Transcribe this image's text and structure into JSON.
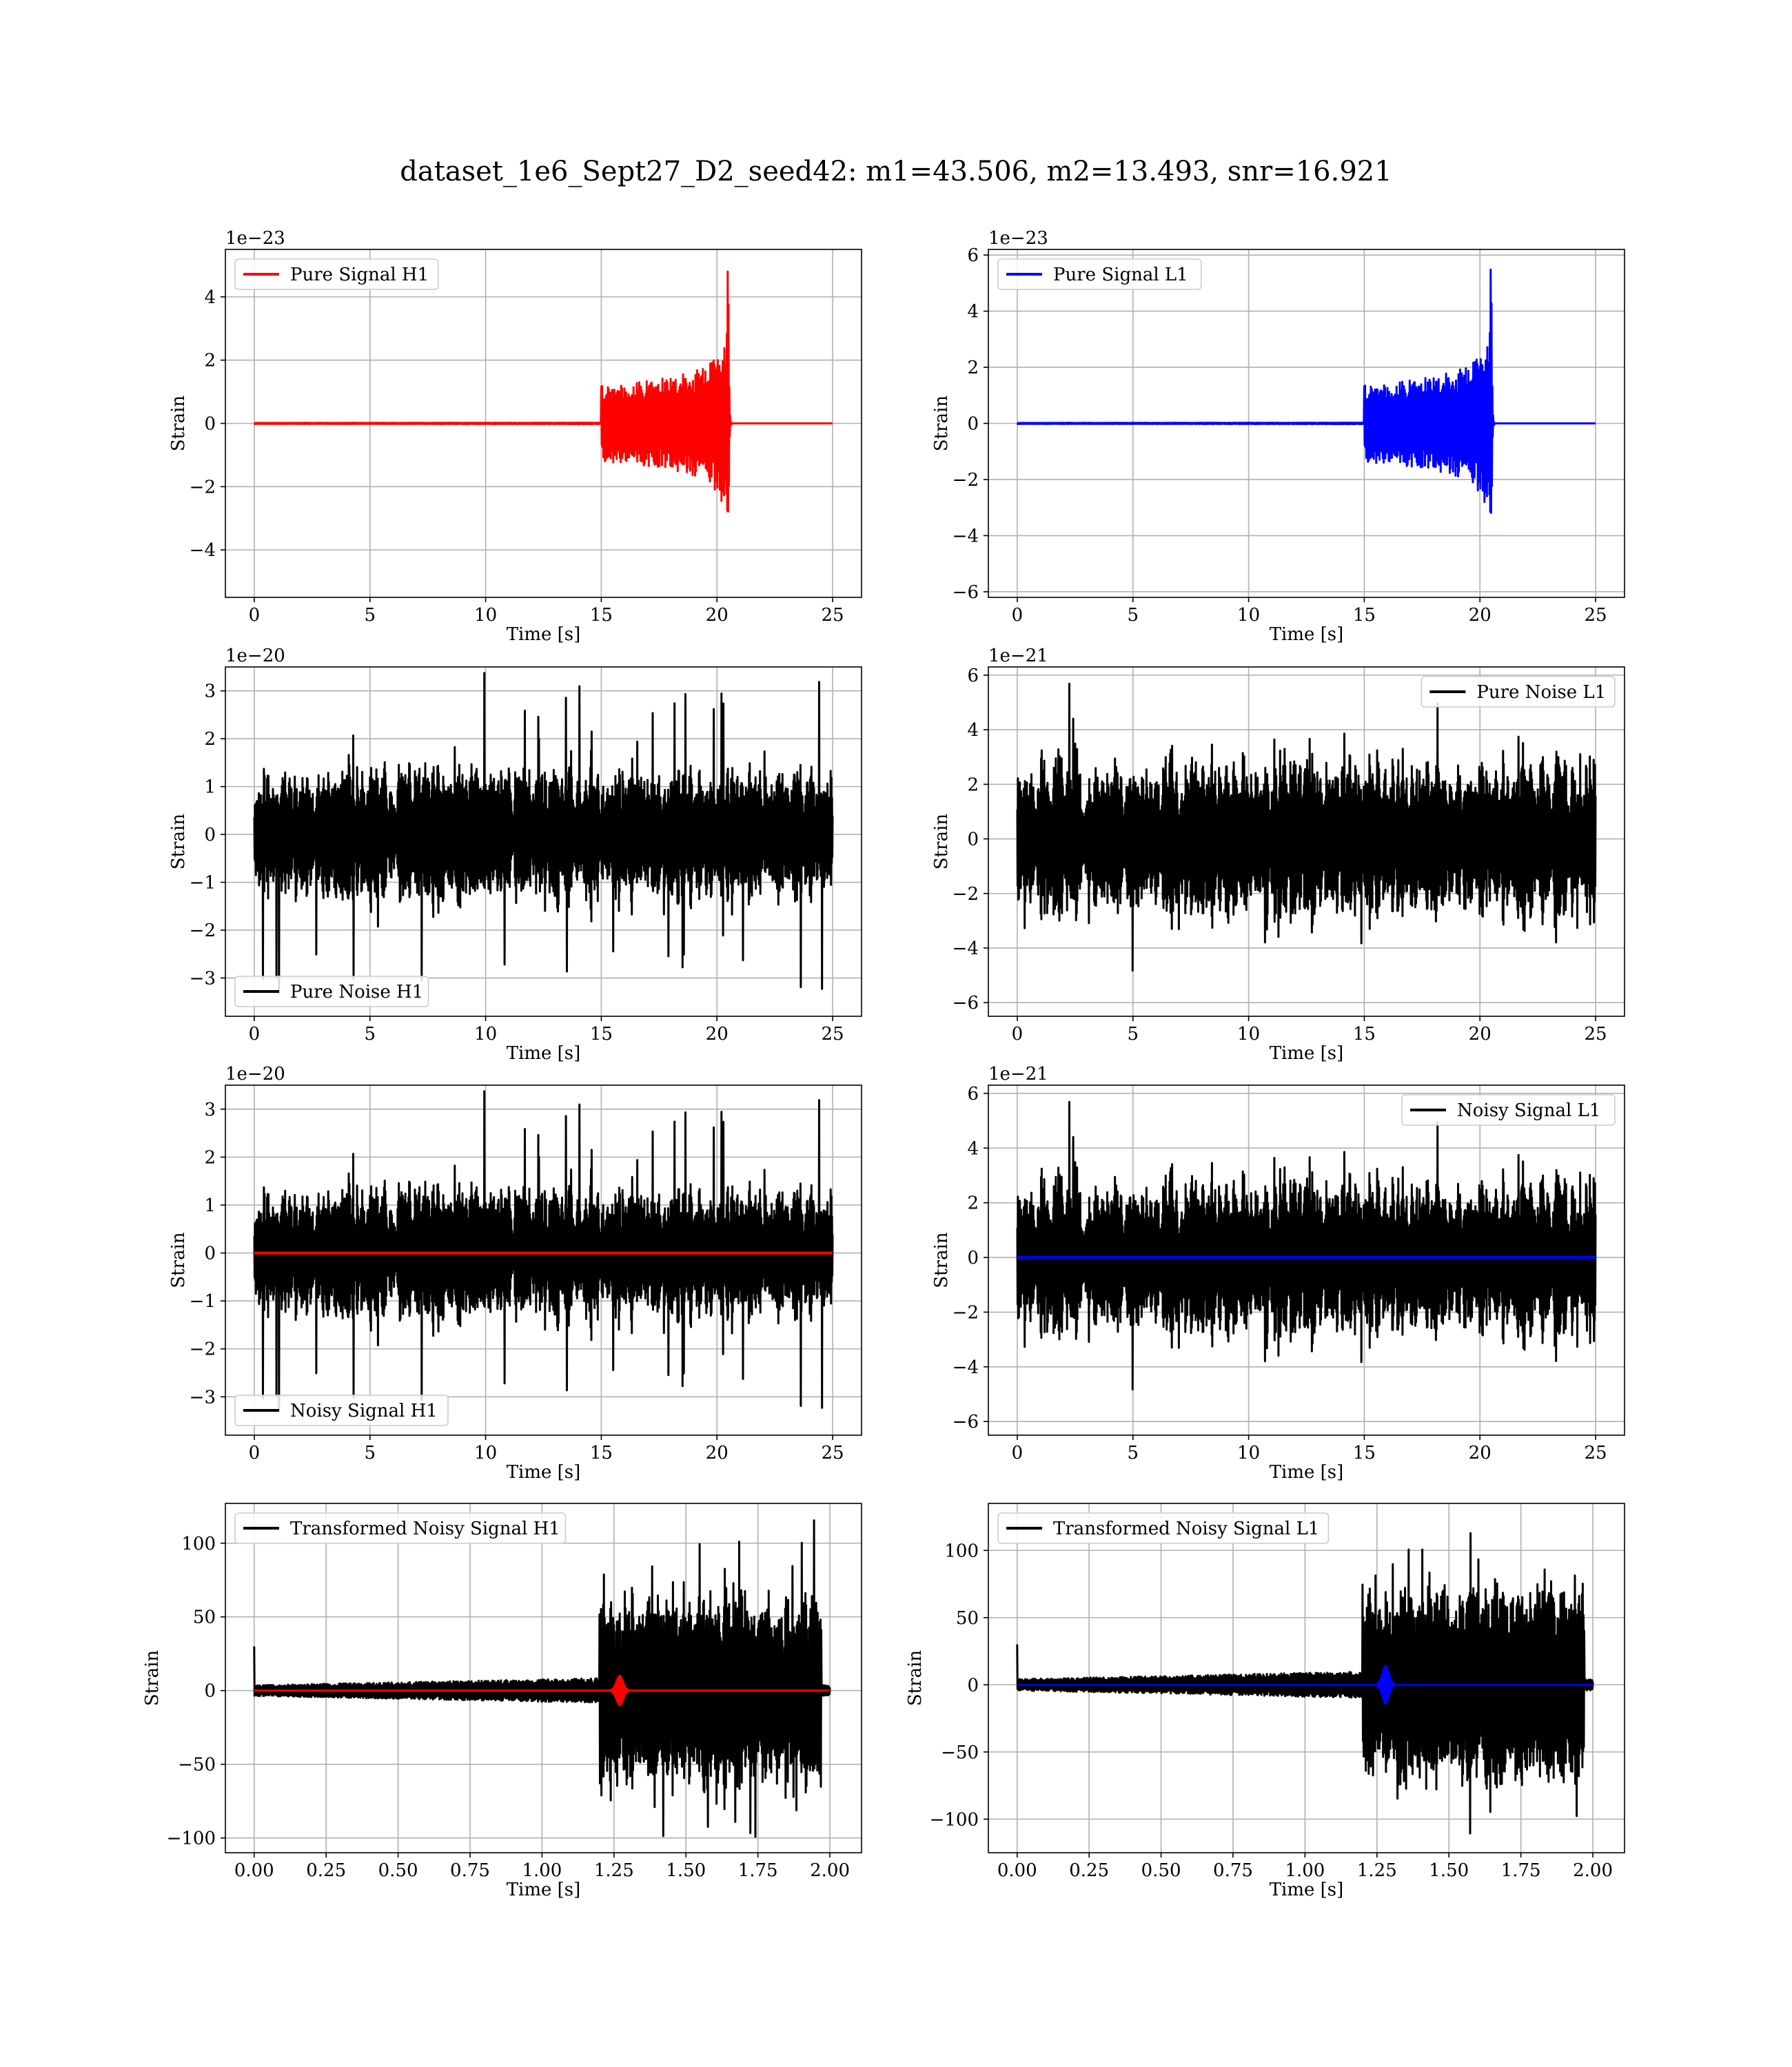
{
  "figure": {
    "suptitle": "dataset_1e6_Sept27_D2_seed42: m1=43.506, m2=13.493, snr=16.921"
  },
  "colors": {
    "h1_signal": "#ff0000",
    "l1_signal": "#0000ff",
    "noise": "#000000",
    "grid": "#b0b0b0"
  },
  "chart_data": [
    {
      "type": "line",
      "id": "pure-signal-h1",
      "xlabel": "Time [s]",
      "ylabel": "Strain",
      "offset_text": "1e−23",
      "xlim": [
        -1.25,
        26.25
      ],
      "ylim": [
        -5.5,
        5.5
      ],
      "xticks": [
        0,
        5,
        10,
        15,
        20,
        25
      ],
      "xtick_labels": [
        "0",
        "5",
        "10",
        "15",
        "20",
        "25"
      ],
      "yticks": [
        -4,
        -2,
        0,
        2,
        4
      ],
      "ytick_labels": [
        "−4",
        "−2",
        "0",
        "2",
        "4"
      ],
      "grid": true,
      "legend_position": "upper left",
      "series": [
        {
          "name": "Pure Signal H1",
          "color": "#ff0000",
          "kind": "chirp",
          "x_range": [
            0,
            25
          ],
          "merger_time": 20.5,
          "peak": 4.9,
          "rise_start": 15
        }
      ]
    },
    {
      "type": "line",
      "id": "pure-signal-l1",
      "xlabel": "Time [s]",
      "ylabel": "Strain",
      "offset_text": "1e−23",
      "xlim": [
        -1.25,
        26.25
      ],
      "ylim": [
        -6.2,
        6.2
      ],
      "xticks": [
        0,
        5,
        10,
        15,
        20,
        25
      ],
      "xtick_labels": [
        "0",
        "5",
        "10",
        "15",
        "20",
        "25"
      ],
      "yticks": [
        -6,
        -4,
        -2,
        0,
        2,
        4,
        6
      ],
      "ytick_labels": [
        "−6",
        "−4",
        "−2",
        "0",
        "2",
        "4",
        "6"
      ],
      "grid": true,
      "legend_position": "upper left",
      "series": [
        {
          "name": "Pure Signal L1",
          "color": "#0000ff",
          "kind": "chirp",
          "x_range": [
            0,
            25
          ],
          "merger_time": 20.5,
          "peak": 5.6,
          "rise_start": 15
        }
      ]
    },
    {
      "type": "line",
      "id": "pure-noise-h1",
      "xlabel": "Time [s]",
      "ylabel": "Strain",
      "offset_text": "1e−20",
      "xlim": [
        -1.25,
        26.25
      ],
      "ylim": [
        -3.8,
        3.5
      ],
      "xticks": [
        0,
        5,
        10,
        15,
        20,
        25
      ],
      "xtick_labels": [
        "0",
        "5",
        "10",
        "15",
        "20",
        "25"
      ],
      "yticks": [
        -3,
        -2,
        -1,
        0,
        1,
        2,
        3
      ],
      "ytick_labels": [
        "−3",
        "−2",
        "−1",
        "0",
        "1",
        "2",
        "3"
      ],
      "grid": true,
      "legend_position": "lower left",
      "series": [
        {
          "name": "Pure Noise H1",
          "color": "#000000",
          "kind": "noise",
          "x_range": [
            0,
            25
          ],
          "base": 1.1,
          "max_abs": 3.6,
          "seed": 11
        }
      ]
    },
    {
      "type": "line",
      "id": "pure-noise-l1",
      "xlabel": "Time [s]",
      "ylabel": "Strain",
      "offset_text": "1e−21",
      "xlim": [
        -1.25,
        26.25
      ],
      "ylim": [
        -6.5,
        6.3
      ],
      "xticks": [
        0,
        5,
        10,
        15,
        20,
        25
      ],
      "xtick_labels": [
        "0",
        "5",
        "10",
        "15",
        "20",
        "25"
      ],
      "yticks": [
        -6,
        -4,
        -2,
        0,
        2,
        4,
        6
      ],
      "ytick_labels": [
        "−6",
        "−4",
        "−2",
        "0",
        "2",
        "4",
        "6"
      ],
      "grid": true,
      "legend_position": "upper right",
      "series": [
        {
          "name": "Pure Noise L1",
          "color": "#000000",
          "kind": "noise",
          "x_range": [
            0,
            25
          ],
          "base": 2.3,
          "max_abs": 5.9,
          "seed": 23
        }
      ]
    },
    {
      "type": "line",
      "id": "noisy-signal-h1",
      "xlabel": "Time [s]",
      "ylabel": "Strain",
      "offset_text": "1e−20",
      "xlim": [
        -1.25,
        26.25
      ],
      "ylim": [
        -3.8,
        3.5
      ],
      "xticks": [
        0,
        5,
        10,
        15,
        20,
        25
      ],
      "xtick_labels": [
        "0",
        "5",
        "10",
        "15",
        "20",
        "25"
      ],
      "yticks": [
        -3,
        -2,
        -1,
        0,
        1,
        2,
        3
      ],
      "ytick_labels": [
        "−3",
        "−2",
        "−1",
        "0",
        "1",
        "2",
        "3"
      ],
      "grid": true,
      "legend_position": "lower left",
      "series": [
        {
          "name": "Noisy Signal H1",
          "color": "#000000",
          "kind": "noise",
          "x_range": [
            0,
            25
          ],
          "base": 1.1,
          "max_abs": 3.6,
          "seed": 11
        },
        {
          "color": "#ff0000",
          "kind": "flat",
          "x_range": [
            0,
            25
          ],
          "value": 0
        }
      ]
    },
    {
      "type": "line",
      "id": "noisy-signal-l1",
      "xlabel": "Time [s]",
      "ylabel": "Strain",
      "offset_text": "1e−21",
      "xlim": [
        -1.25,
        26.25
      ],
      "ylim": [
        -6.5,
        6.3
      ],
      "xticks": [
        0,
        5,
        10,
        15,
        20,
        25
      ],
      "xtick_labels": [
        "0",
        "5",
        "10",
        "15",
        "20",
        "25"
      ],
      "yticks": [
        -6,
        -4,
        -2,
        0,
        2,
        4,
        6
      ],
      "ytick_labels": [
        "−6",
        "−4",
        "−2",
        "0",
        "2",
        "4",
        "6"
      ],
      "grid": true,
      "legend_position": "upper right",
      "series": [
        {
          "name": "Noisy Signal L1",
          "color": "#000000",
          "kind": "noise",
          "x_range": [
            0,
            25
          ],
          "base": 2.3,
          "max_abs": 5.9,
          "seed": 23
        },
        {
          "color": "#0000ff",
          "kind": "flat",
          "x_range": [
            0,
            25
          ],
          "value": 0
        }
      ]
    },
    {
      "type": "line",
      "id": "transformed-noisy-signal-h1",
      "xlabel": "Time [s]",
      "ylabel": "Strain",
      "offset_text": "",
      "xlim": [
        -0.1,
        2.11
      ],
      "ylim": [
        -110,
        127
      ],
      "xticks": [
        0,
        0.25,
        0.5,
        0.75,
        1.0,
        1.25,
        1.5,
        1.75,
        2.0
      ],
      "xtick_labels": [
        "0.00",
        "0.25",
        "0.50",
        "0.75",
        "1.00",
        "1.25",
        "1.50",
        "1.75",
        "2.00"
      ],
      "yticks": [
        -100,
        -50,
        0,
        50,
        100
      ],
      "ytick_labels": [
        "−100",
        "−50",
        "0",
        "50",
        "100"
      ],
      "grid": true,
      "legend_position": "upper left",
      "series": [
        {
          "name": "Transformed Noisy Signal H1",
          "color": "#000000",
          "kind": "whitened",
          "x_range": [
            0,
            2.0
          ],
          "quiet": 6,
          "loud": 60,
          "step_time": 1.2,
          "max_abs": 118,
          "seed": 37
        },
        {
          "color": "#ff0000",
          "kind": "burst",
          "x_range": [
            0,
            2.0
          ],
          "burst_time": 1.27,
          "peak": 10
        }
      ]
    },
    {
      "type": "line",
      "id": "transformed-noisy-signal-l1",
      "xlabel": "Time [s]",
      "ylabel": "Strain",
      "offset_text": "",
      "xlim": [
        -0.1,
        2.11
      ],
      "ylim": [
        -125,
        135
      ],
      "xticks": [
        0,
        0.25,
        0.5,
        0.75,
        1.0,
        1.25,
        1.5,
        1.75,
        2.0
      ],
      "xtick_labels": [
        "0.00",
        "0.25",
        "0.50",
        "0.75",
        "1.00",
        "1.25",
        "1.50",
        "1.75",
        "2.00"
      ],
      "yticks": [
        -100,
        -50,
        0,
        50,
        100
      ],
      "ytick_labels": [
        "−100",
        "−50",
        "0",
        "50",
        "100"
      ],
      "grid": true,
      "legend_position": "upper left",
      "series": [
        {
          "name": "Transformed Noisy Signal L1",
          "color": "#000000",
          "kind": "whitened",
          "x_range": [
            0,
            2.0
          ],
          "quiet": 7,
          "loud": 65,
          "step_time": 1.2,
          "max_abs": 126,
          "seed": 53
        },
        {
          "color": "#0000ff",
          "kind": "burst",
          "x_range": [
            0,
            2.0
          ],
          "burst_time": 1.28,
          "peak": 14
        }
      ]
    }
  ]
}
